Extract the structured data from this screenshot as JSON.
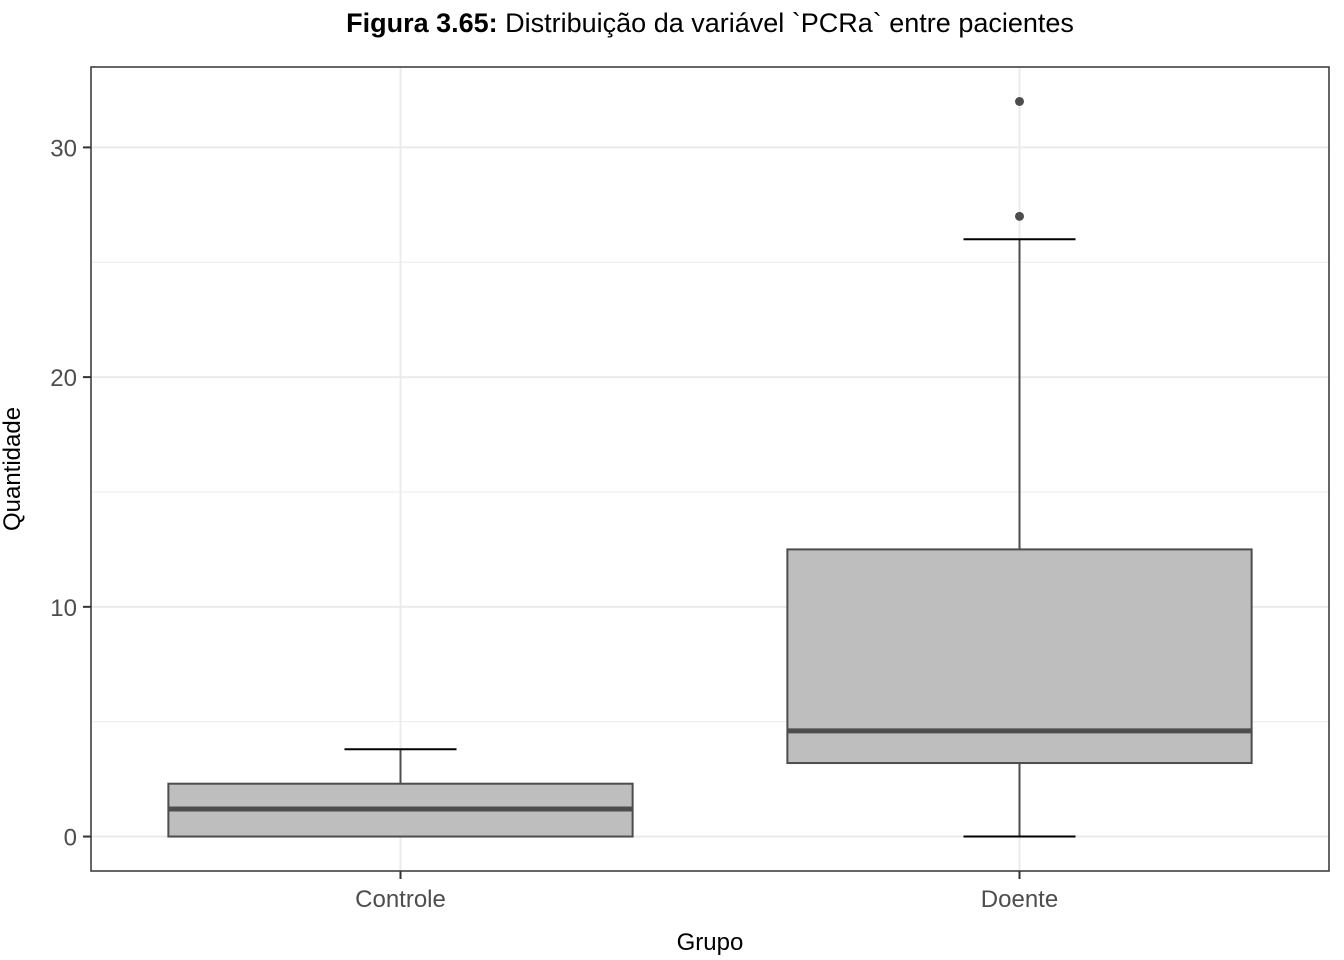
{
  "chart_data": {
    "type": "boxplot",
    "title_prefix": "Figura 3.65:",
    "title_rest": " Distribuição da variável `PCRa` entre pacientes",
    "xlabel": "Grupo",
    "ylabel": "Quantidade",
    "categories": [
      "Controle",
      "Doente"
    ],
    "ylim": [
      -1.5,
      33.5
    ],
    "yticks": [
      0,
      10,
      20,
      30
    ],
    "grid": true,
    "boxes": [
      {
        "category": "Controle",
        "whisker_low": 0,
        "q1": 0,
        "median": 1.2,
        "q3": 2.3,
        "whisker_high": 3.8,
        "outliers": []
      },
      {
        "category": "Doente",
        "whisker_low": 0,
        "q1": 3.2,
        "median": 4.6,
        "q3": 12.5,
        "whisker_high": 26,
        "outliers": [
          27,
          32
        ]
      }
    ],
    "colors": {
      "box_fill": "#bebebe",
      "box_stroke": "#4d4d4d",
      "median": "#4d4d4d",
      "grid": "#ebebeb",
      "panel_border": "#333333"
    }
  }
}
